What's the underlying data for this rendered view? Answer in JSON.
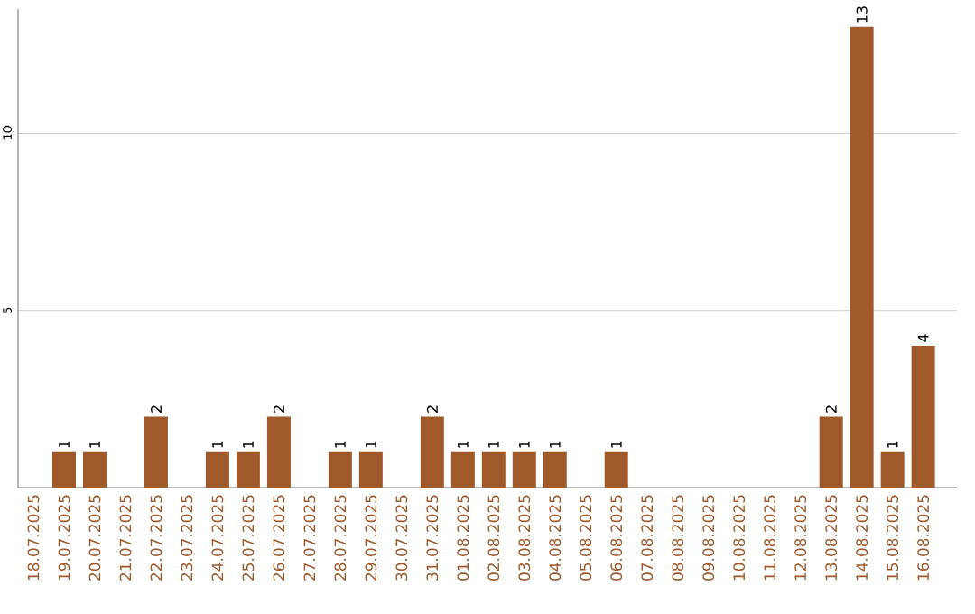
{
  "chart_data": {
    "type": "bar",
    "categories": [
      "18.07.2025",
      "19.07.2025",
      "20.07.2025",
      "21.07.2025",
      "22.07.2025",
      "23.07.2025",
      "24.07.2025",
      "25.07.2025",
      "26.07.2025",
      "27.07.2025",
      "28.07.2025",
      "29.07.2025",
      "30.07.2025",
      "31.07.2025",
      "01.08.2025",
      "02.08.2025",
      "03.08.2025",
      "04.08.2025",
      "05.08.2025",
      "06.08.2025",
      "07.08.2025",
      "08.08.2025",
      "09.08.2025",
      "10.08.2025",
      "11.08.2025",
      "12.08.2025",
      "13.08.2025",
      "14.08.2025",
      "15.08.2025",
      "16.08.2025"
    ],
    "values": [
      0,
      1,
      1,
      0,
      2,
      0,
      1,
      1,
      2,
      0,
      1,
      1,
      0,
      2,
      1,
      1,
      1,
      1,
      0,
      1,
      0,
      0,
      0,
      0,
      0,
      0,
      2,
      13,
      1,
      4
    ],
    "value_labels": [
      null,
      "1",
      "1",
      null,
      "2",
      null,
      "1",
      "1",
      "2",
      null,
      "1",
      "1",
      null,
      "2",
      "1",
      "1",
      "1",
      "1",
      null,
      "1",
      null,
      null,
      null,
      null,
      null,
      null,
      "2",
      "13",
      "1",
      "4"
    ],
    "color": "#a0592a",
    "ylim": [
      0,
      13.5
    ],
    "yticks": [
      5,
      10
    ],
    "grid": "y"
  }
}
